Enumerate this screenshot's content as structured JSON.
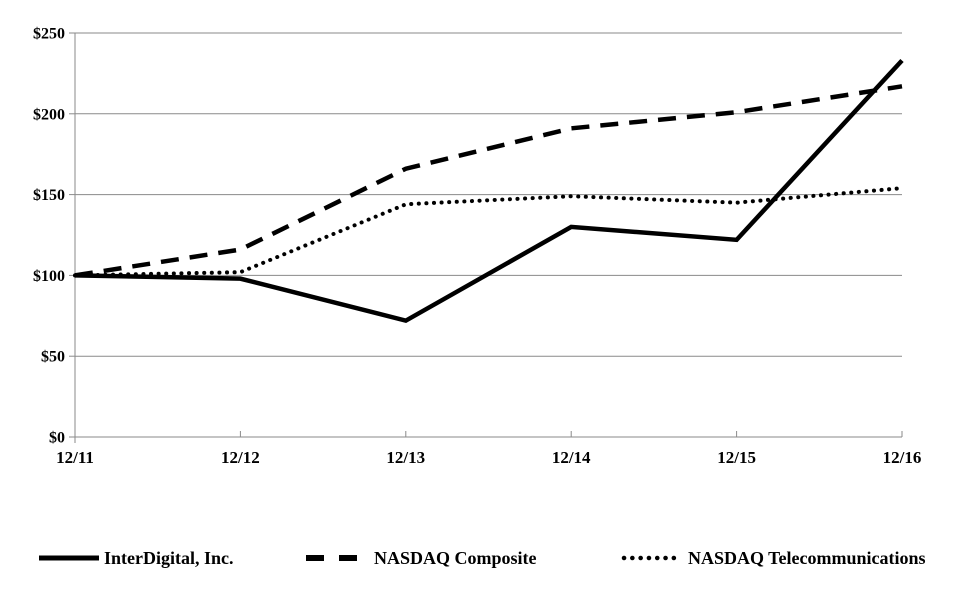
{
  "chart_data": {
    "type": "line",
    "title": "",
    "xlabel": "",
    "ylabel": "",
    "categories": [
      "12/11",
      "12/12",
      "12/13",
      "12/14",
      "12/15",
      "12/16"
    ],
    "series": [
      {
        "name": "InterDigital, Inc.",
        "style": "solid",
        "values": [
          100,
          98,
          72,
          130,
          122,
          233
        ]
      },
      {
        "name": "NASDAQ Composite",
        "style": "dashed",
        "values": [
          100,
          116,
          166,
          191,
          201,
          217
        ]
      },
      {
        "name": "NASDAQ Telecommunications",
        "style": "dotted",
        "values": [
          100,
          102,
          144,
          149,
          145,
          154
        ]
      }
    ],
    "ylim": [
      0,
      250
    ],
    "y_ticks": [
      {
        "value": 0,
        "label": "$0"
      },
      {
        "value": 50,
        "label": "$50"
      },
      {
        "value": 100,
        "label": "$100"
      },
      {
        "value": 150,
        "label": "$150"
      },
      {
        "value": 200,
        "label": "$200"
      },
      {
        "value": 250,
        "label": "$250"
      }
    ],
    "grid": true,
    "legend_position": "bottom",
    "colors": {
      "line": "#000000",
      "grid": "#8a8a8a",
      "background": "#ffffff",
      "text": "#000000"
    }
  }
}
